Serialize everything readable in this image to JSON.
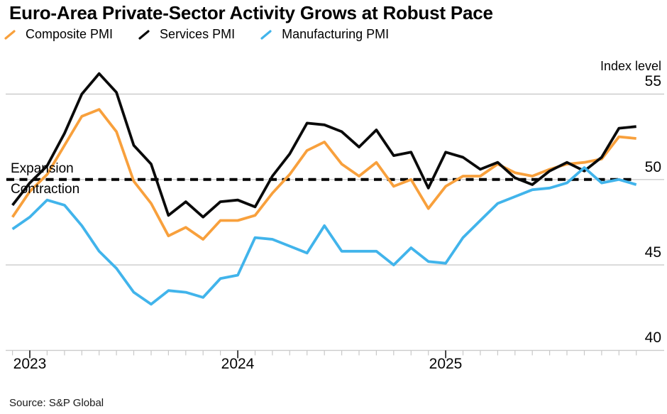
{
  "chart_data": {
    "type": "line",
    "title": "Euro-Area Private-Sector Activity Grows at Robust Pace",
    "ylabel": "Index level",
    "xlabel": "",
    "legend_position": "top",
    "grid": "horizontal",
    "ylim": [
      40,
      56.5
    ],
    "y_gridlines": [
      55,
      50,
      45,
      40
    ],
    "x_ticks": [
      {
        "label": "2023",
        "index": 1
      },
      {
        "label": "2024",
        "index": 13
      },
      {
        "label": "2025",
        "index": 25
      }
    ],
    "baseline": {
      "value": 50,
      "style": "dashed",
      "color": "#000000"
    },
    "annotations": {
      "expansion": "Expansion",
      "contraction": "Contraction"
    },
    "x": [
      "Nov 2022",
      "Dec 2022",
      "Jan 2023",
      "Feb 2023",
      "Mar 2023",
      "Apr 2023",
      "May 2023",
      "Jun 2023",
      "Jul 2023",
      "Aug 2023",
      "Sep 2023",
      "Oct 2023",
      "Nov 2023",
      "Dec 2023",
      "Jan 2024",
      "Feb 2024",
      "Mar 2024",
      "Apr 2024",
      "May 2024",
      "Jun 2024",
      "Jul 2024",
      "Aug 2024",
      "Sep 2024",
      "Oct 2024",
      "Nov 2024",
      "Dec 2024",
      "Jan 2025",
      "Feb 2025",
      "Mar 2025",
      "Apr 2025",
      "May 2025",
      "Jun 2025",
      "Jul 2025",
      "Aug 2025",
      "Sep 2025",
      "Oct 2025",
      "Nov 2025"
    ],
    "series": [
      {
        "name": "Composite PMI",
        "color": "#F8A03C",
        "values": [
          47.8,
          49.3,
          50.3,
          52.0,
          53.7,
          54.1,
          52.8,
          49.9,
          48.6,
          46.7,
          47.2,
          46.5,
          47.6,
          47.6,
          47.9,
          49.2,
          50.3,
          51.7,
          52.2,
          50.9,
          50.2,
          51.0,
          49.6,
          50.0,
          48.3,
          49.6,
          50.2,
          50.2,
          50.9,
          50.4,
          50.2,
          50.6,
          50.9,
          51.0,
          51.2,
          52.5,
          52.4
        ]
      },
      {
        "name": "Services PMI",
        "color": "#0a0a0a",
        "values": [
          48.5,
          49.8,
          50.8,
          52.7,
          55.0,
          56.2,
          55.1,
          52.0,
          50.9,
          47.9,
          48.7,
          47.8,
          48.7,
          48.8,
          48.4,
          50.2,
          51.5,
          53.3,
          53.2,
          52.8,
          51.9,
          52.9,
          51.4,
          51.6,
          49.5,
          51.6,
          51.3,
          50.6,
          51.0,
          50.1,
          49.7,
          50.5,
          51.0,
          50.5,
          51.3,
          53.0,
          53.1
        ]
      },
      {
        "name": "Manufacturing PMI",
        "color": "#41B4EB",
        "values": [
          47.1,
          47.8,
          48.8,
          48.5,
          47.3,
          45.8,
          44.8,
          43.4,
          42.7,
          43.5,
          43.4,
          43.1,
          44.2,
          44.4,
          46.6,
          46.5,
          46.1,
          45.7,
          47.3,
          45.8,
          45.8,
          45.8,
          45.0,
          46.0,
          45.2,
          45.1,
          46.6,
          47.6,
          48.6,
          49.0,
          49.4,
          49.5,
          49.8,
          50.7,
          49.8,
          50.0,
          49.7
        ]
      }
    ]
  },
  "source": "Source: S&P Global",
  "colors": {
    "gridline": "#CBCBCB",
    "tick_minor": "#C8C8C8",
    "tick_major": "#1a1a1a"
  }
}
